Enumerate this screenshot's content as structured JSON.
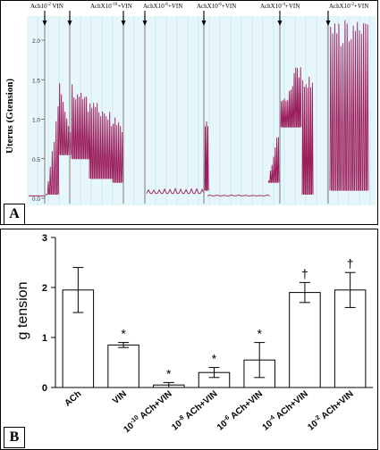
{
  "panel_a": {
    "label": "A",
    "ylabel": "Uterus (Gtension)",
    "y_ticks": [
      "0.0",
      "0.5",
      "1.0",
      "1.5",
      "2.0"
    ],
    "annotations": [
      {
        "base": "Ach10",
        "sup": "-2",
        "rest": " VIN"
      },
      {
        "base": "AchX10",
        "sup": "-10",
        "rest": "+VIN"
      },
      {
        "base": "AchX10",
        "sup": "-8",
        "rest": "+VIN"
      },
      {
        "base": "AchX10",
        "sup": "-6",
        "rest": "+VIN"
      },
      {
        "base": "AchX10",
        "sup": "-4",
        "rest": "+VIN"
      },
      {
        "base": "AchX10",
        "sup": "-2",
        "rest": "+VIN"
      }
    ],
    "trace_color": "#9b1c5a"
  },
  "panel_b": {
    "label": "B",
    "chart_data": {
      "type": "bar",
      "ylabel": "g tension",
      "ylim": [
        0,
        3
      ],
      "y_ticks": [
        "0",
        "1",
        "2",
        "3"
      ],
      "categories": [
        {
          "pre": "",
          "sup": "",
          "text": "ACh"
        },
        {
          "pre": "",
          "sup": "",
          "text": "VIN"
        },
        {
          "pre": "10",
          "sup": "-10",
          "text": " ACh+VIN"
        },
        {
          "pre": "10",
          "sup": "-8",
          "text": " ACh+VIN"
        },
        {
          "pre": "10",
          "sup": "-6",
          "text": " ACh+VIN"
        },
        {
          "pre": "10",
          "sup": "-4",
          "text": " ACh+VIN"
        },
        {
          "pre": "10",
          "sup": "-2",
          "text": " ACh+VIN"
        }
      ],
      "values": [
        1.95,
        0.85,
        0.05,
        0.3,
        0.55,
        1.9,
        1.95
      ],
      "errors": [
        0.45,
        0.05,
        0.05,
        0.1,
        0.35,
        0.2,
        0.35
      ],
      "markers": [
        "",
        "*",
        "*",
        "*",
        "*",
        "†",
        "†"
      ]
    }
  }
}
